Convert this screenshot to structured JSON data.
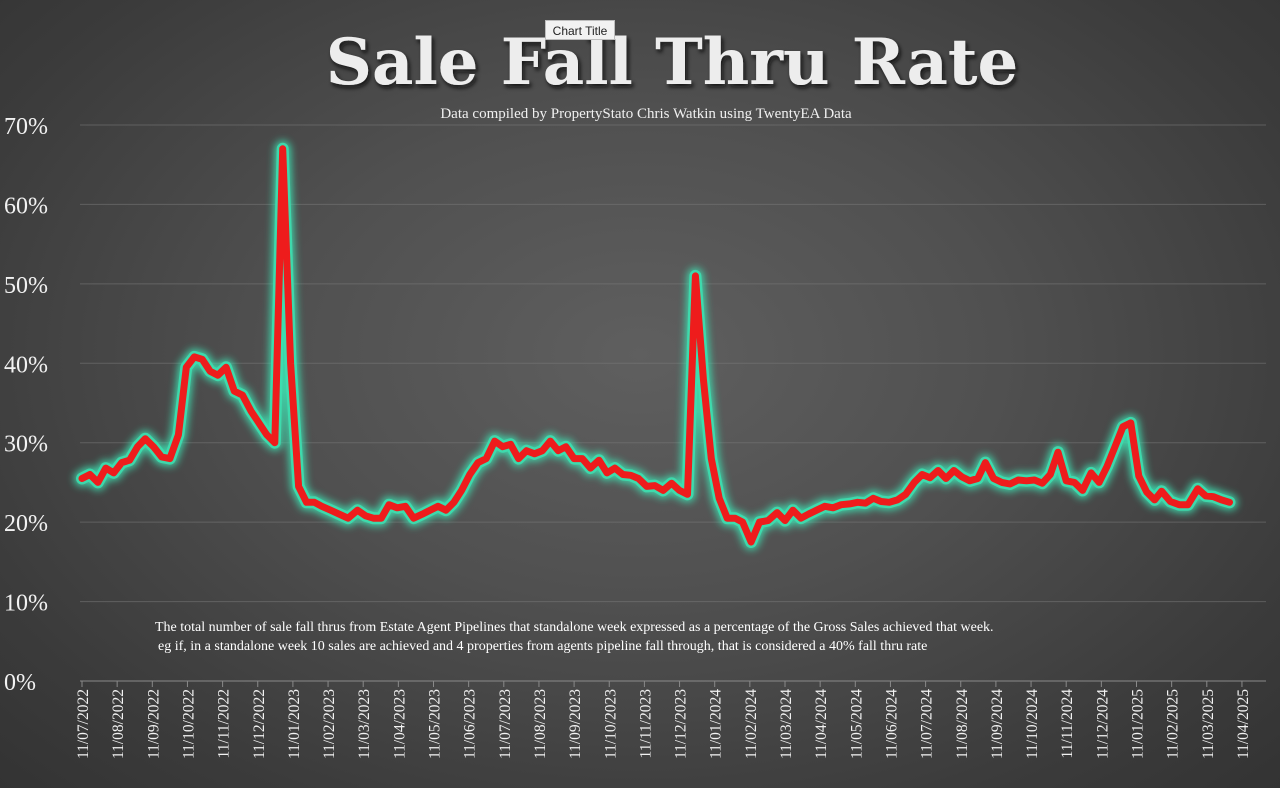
{
  "chart_title_badge": "Chart Title",
  "chart_data": {
    "type": "line",
    "title": "Sale Fall Thru Rate",
    "subtitle": "Data compiled by PropertyStato Chris Watkin using TwentyEA Data",
    "annotation_line1": "The total number of sale fall thrus from Estate Agent Pipelines that standalone week expressed as a percentage of the Gross Sales achieved that week.",
    "annotation_line2": "eg if, in a standalone week 10 sales are achieved and 4 properties from agents pipeline fall through, that is considered a 40%  fall thru rate",
    "ylim": [
      0,
      70
    ],
    "y_ticks": [
      0,
      10,
      20,
      30,
      40,
      50,
      60,
      70
    ],
    "y_tick_labels": [
      "0%",
      "10%",
      "20%",
      "30%",
      "40%",
      "50%",
      "60%",
      "70%"
    ],
    "x_tick_labels": [
      "11/07/2022",
      "11/08/2022",
      "11/09/2022",
      "11/10/2022",
      "11/11/2022",
      "11/12/2022",
      "11/01/2023",
      "11/02/2023",
      "11/03/2023",
      "11/04/2023",
      "11/05/2023",
      "11/06/2023",
      "11/07/2023",
      "11/08/2023",
      "11/09/2023",
      "11/10/2023",
      "11/11/2023",
      "11/12/2023",
      "11/01/2024",
      "11/02/2024",
      "11/03/2024",
      "11/04/2024",
      "11/05/2024",
      "11/06/2024",
      "11/07/2024",
      "11/08/2024",
      "11/09/2024",
      "11/10/2024",
      "11/11/2024",
      "11/12/2024",
      "11/01/2025",
      "11/02/2025",
      "11/03/2025",
      "11/04/2025"
    ],
    "grid": true,
    "series": [
      {
        "color": "#ee1c1c",
        "glow_color": "#3ddfb0",
        "x": [
          "2022-07-11",
          "2022-07-18",
          "2022-07-25",
          "2022-08-01",
          "2022-08-08",
          "2022-08-15",
          "2022-08-22",
          "2022-08-29",
          "2022-09-05",
          "2022-09-12",
          "2022-09-19",
          "2022-09-26",
          "2022-10-03",
          "2022-10-10",
          "2022-10-17",
          "2022-10-24",
          "2022-10-31",
          "2022-11-07",
          "2022-11-14",
          "2022-11-21",
          "2022-11-28",
          "2022-12-05",
          "2022-12-12",
          "2022-12-19",
          "2022-12-26",
          "2023-01-02",
          "2023-01-09",
          "2023-01-16",
          "2023-01-23",
          "2023-01-30",
          "2023-02-06",
          "2023-02-13",
          "2023-02-20",
          "2023-02-27",
          "2023-03-06",
          "2023-03-13",
          "2023-03-20",
          "2023-03-27",
          "2023-04-03",
          "2023-04-10",
          "2023-04-17",
          "2023-04-24",
          "2023-05-01",
          "2023-05-08",
          "2023-05-15",
          "2023-05-22",
          "2023-05-29",
          "2023-06-05",
          "2023-06-12",
          "2023-06-19",
          "2023-06-26",
          "2023-07-03",
          "2023-07-10",
          "2023-07-17",
          "2023-07-24",
          "2023-07-31",
          "2023-08-07",
          "2023-08-14",
          "2023-08-21",
          "2023-08-28",
          "2023-09-04",
          "2023-09-11",
          "2023-09-18",
          "2023-09-25",
          "2023-10-02",
          "2023-10-09",
          "2023-10-16",
          "2023-10-23",
          "2023-10-30",
          "2023-11-06",
          "2023-11-13",
          "2023-11-20",
          "2023-11-27",
          "2023-12-04",
          "2023-12-11",
          "2023-12-18",
          "2023-12-25",
          "2024-01-01",
          "2024-01-08",
          "2024-01-15",
          "2024-01-22",
          "2024-01-29",
          "2024-02-05",
          "2024-02-12",
          "2024-02-19",
          "2024-02-26",
          "2024-03-04",
          "2024-03-11",
          "2024-03-18",
          "2024-03-25",
          "2024-04-01",
          "2024-04-08",
          "2024-04-15",
          "2024-04-22",
          "2024-04-29",
          "2024-05-06",
          "2024-05-13",
          "2024-05-20",
          "2024-05-27",
          "2024-06-03",
          "2024-06-10",
          "2024-06-17",
          "2024-06-24",
          "2024-07-01",
          "2024-07-08",
          "2024-07-15",
          "2024-07-22",
          "2024-07-29",
          "2024-08-05",
          "2024-08-12",
          "2024-08-19",
          "2024-08-26",
          "2024-09-02",
          "2024-09-09",
          "2024-09-16",
          "2024-09-23",
          "2024-09-30",
          "2024-10-07",
          "2024-10-14",
          "2024-10-21",
          "2024-10-28",
          "2024-11-04",
          "2024-11-11",
          "2024-11-18",
          "2024-11-25",
          "2024-12-02",
          "2024-12-09",
          "2024-12-16",
          "2024-12-23",
          "2024-12-30",
          "2025-01-06",
          "2025-01-13",
          "2025-01-20",
          "2025-01-27",
          "2025-02-03",
          "2025-02-10",
          "2025-02-17",
          "2025-02-24",
          "2025-03-03",
          "2025-03-10",
          "2025-03-17",
          "2025-03-24",
          "2025-03-31"
        ],
        "values": [
          25.5,
          26.0,
          25.0,
          26.8,
          26.2,
          27.5,
          27.8,
          29.5,
          30.5,
          29.5,
          28.2,
          28.0,
          31.0,
          39.5,
          40.8,
          40.5,
          39.0,
          38.5,
          39.5,
          36.5,
          36.0,
          34.0,
          32.5,
          31.0,
          30.0,
          67.0,
          40.0,
          24.5,
          22.5,
          22.5,
          22.0,
          21.5,
          21.0,
          20.5,
          21.5,
          20.8,
          20.5,
          20.5,
          22.2,
          21.8,
          22.0,
          20.5,
          21.0,
          21.5,
          22.0,
          21.5,
          22.5,
          24.0,
          26.0,
          27.5,
          28.0,
          30.2,
          29.5,
          29.8,
          28.0,
          29.0,
          28.6,
          29.0,
          30.2,
          29.0,
          29.5,
          28.0,
          28.0,
          26.8,
          27.8,
          26.2,
          26.8,
          26.0,
          25.9,
          25.5,
          24.5,
          24.6,
          24.0,
          24.9,
          24.0,
          23.5,
          51.0,
          38.0,
          28.0,
          23.0,
          20.5,
          20.5,
          20.0,
          17.5,
          20.0,
          20.2,
          21.2,
          20.2,
          21.5,
          20.5,
          21.0,
          21.5,
          22.0,
          21.8,
          22.2,
          22.3,
          22.5,
          22.4,
          23.0,
          22.6,
          22.5,
          22.8,
          23.5,
          25.0,
          26.0,
          25.6,
          26.5,
          25.5,
          26.5,
          25.7,
          25.2,
          25.5,
          27.5,
          25.5,
          25.0,
          24.8,
          25.3,
          25.2,
          25.3,
          24.9,
          26.0,
          28.8,
          25.2,
          25.0,
          24.0,
          26.2,
          25.0,
          27.0,
          29.5,
          32.0,
          32.5,
          25.8,
          23.8,
          22.8,
          23.9,
          22.6,
          22.2,
          22.2,
          24.2,
          23.3,
          23.2,
          22.8,
          22.5
        ]
      }
    ]
  }
}
